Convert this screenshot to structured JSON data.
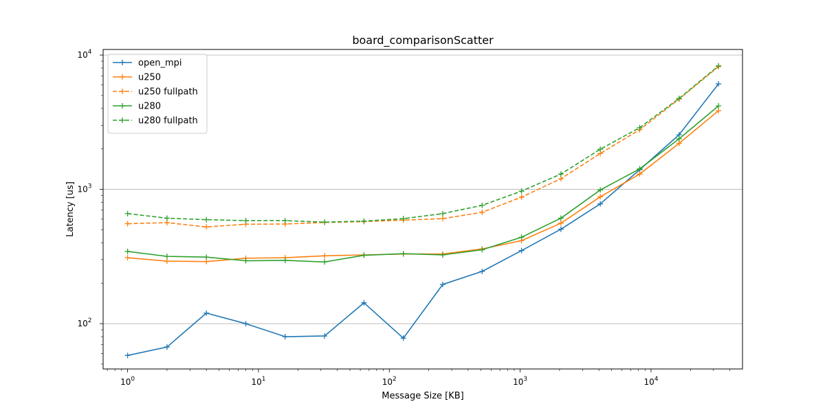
{
  "chart_data": {
    "type": "line",
    "title": "board_comparisonScatter",
    "xlabel": "Message Size [KB]",
    "ylabel": "Latency [us]",
    "xscale": "log",
    "yscale": "log",
    "xlim": [
      0.65,
      50000
    ],
    "ylim": [
      46,
      11000
    ],
    "grid": "y-major",
    "legend_position": "top-left",
    "x": [
      1,
      2,
      4,
      8,
      16,
      32,
      64,
      128,
      256,
      512,
      1024,
      2048,
      4096,
      8192,
      16384,
      32768
    ],
    "x_ticks": [
      {
        "value": 1,
        "base": "10",
        "exp": "0"
      },
      {
        "value": 10,
        "base": "10",
        "exp": "1"
      },
      {
        "value": 100,
        "base": "10",
        "exp": "2"
      },
      {
        "value": 1000,
        "base": "10",
        "exp": "3"
      },
      {
        "value": 10000,
        "base": "10",
        "exp": "4"
      }
    ],
    "y_ticks": [
      {
        "value": 100,
        "base": "10",
        "exp": "2"
      },
      {
        "value": 1000,
        "base": "10",
        "exp": "3"
      },
      {
        "value": 10000,
        "base": "10",
        "exp": "4"
      }
    ],
    "series": [
      {
        "name": "open_mpi",
        "color": "#1f77b4",
        "dash": "solid",
        "values": [
          58,
          67,
          120,
          100,
          80,
          81,
          143,
          78,
          196,
          245,
          350,
          505,
          780,
          1400,
          2550,
          6100
        ]
      },
      {
        "name": "u250",
        "color": "#ff7f0e",
        "dash": "solid",
        "values": [
          310,
          292,
          290,
          307,
          310,
          320,
          325,
          330,
          330,
          360,
          415,
          560,
          880,
          1300,
          2200,
          3850
        ]
      },
      {
        "name": "u250 fullpath",
        "color": "#ff7f0e",
        "dash": "dashed",
        "values": [
          555,
          565,
          525,
          550,
          552,
          567,
          575,
          590,
          605,
          675,
          875,
          1200,
          1850,
          2780,
          4700,
          8200
        ]
      },
      {
        "name": "u280",
        "color": "#2ca02c",
        "dash": "solid",
        "values": [
          345,
          317,
          313,
          294,
          296,
          288,
          323,
          332,
          325,
          355,
          440,
          610,
          990,
          1420,
          2380,
          4180
        ]
      },
      {
        "name": "u280 fullpath",
        "color": "#2ca02c",
        "dash": "dashed",
        "values": [
          660,
          610,
          595,
          585,
          585,
          570,
          580,
          605,
          660,
          760,
          970,
          1300,
          1990,
          2880,
          4750,
          8300
        ]
      }
    ]
  }
}
